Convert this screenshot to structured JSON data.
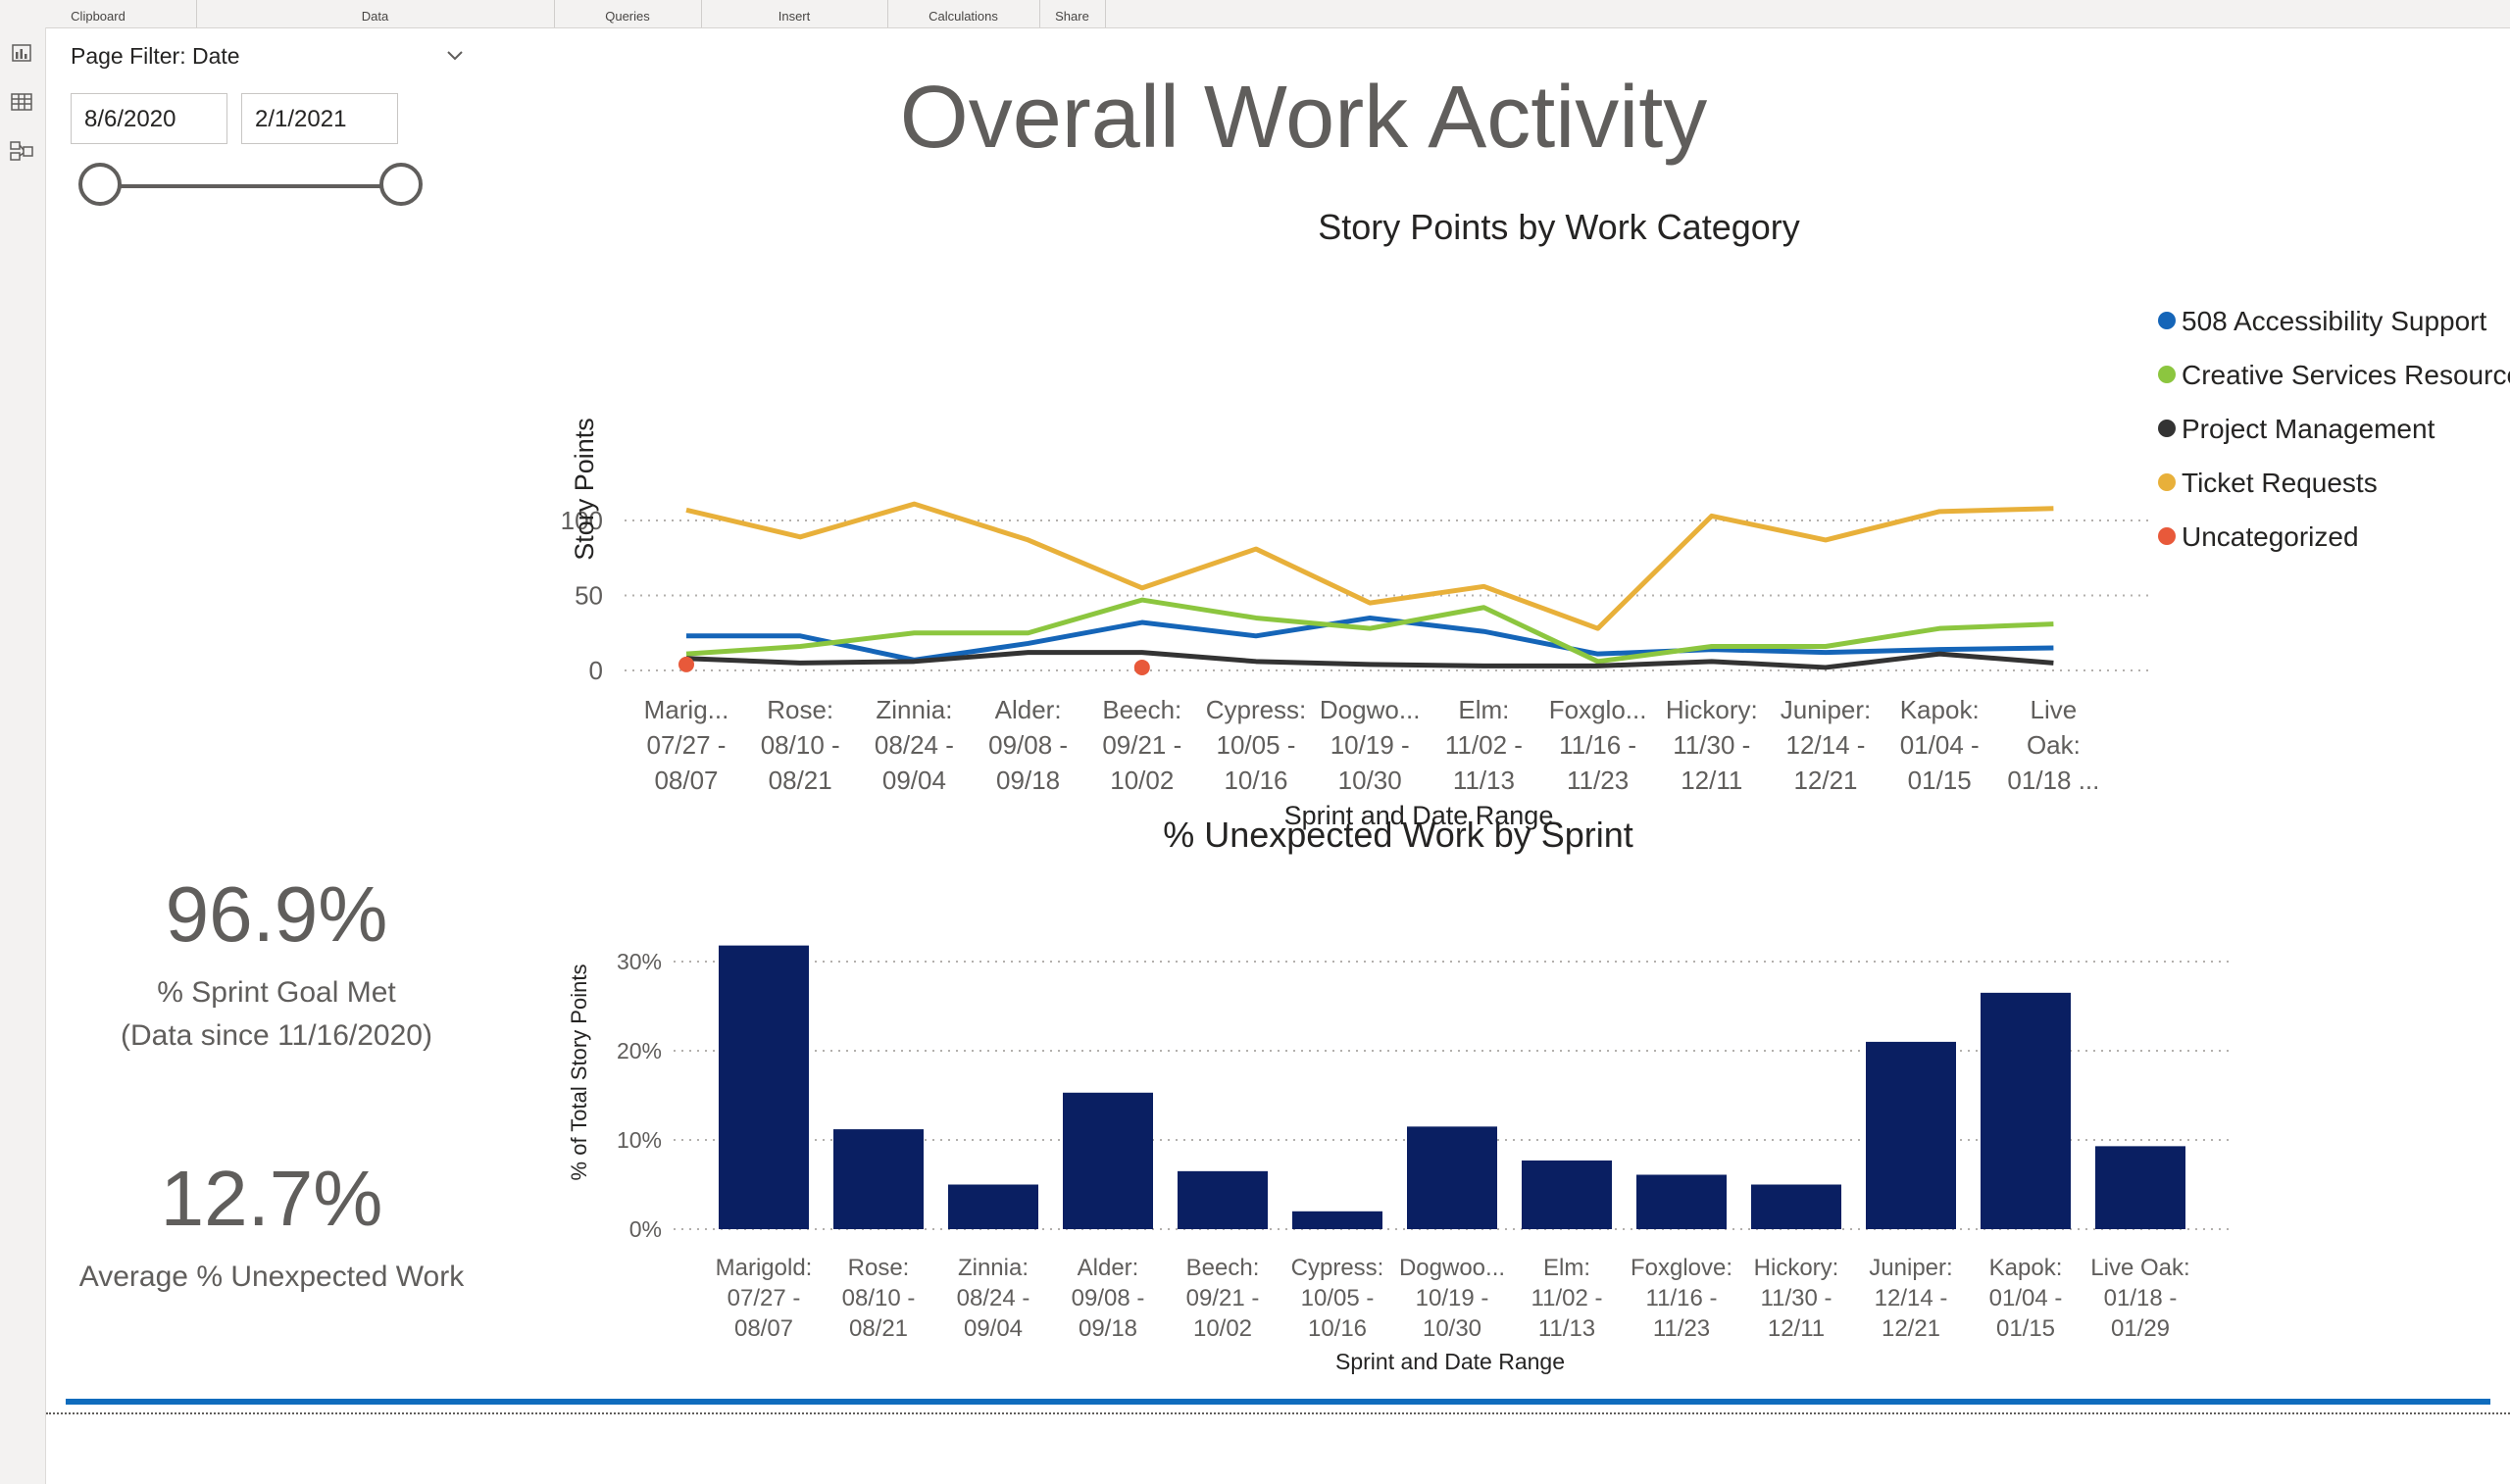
{
  "ribbon": {
    "groups": [
      "Clipboard",
      "Data",
      "Queries",
      "Insert",
      "Calculations",
      "Share"
    ]
  },
  "rail": {
    "icons": [
      "report-view-icon",
      "table-view-icon",
      "model-view-icon"
    ]
  },
  "page": {
    "title": "Overall Work Activity"
  },
  "slicer": {
    "header": "Page Filter: Date",
    "start_date": "8/6/2020",
    "end_date": "2/1/2021"
  },
  "kpi": {
    "sprint_goal_value": "96.9%",
    "sprint_goal_label": "% Sprint Goal Met",
    "sprint_goal_note": "(Data since 11/16/2020)",
    "unexpected_value": "12.7%",
    "unexpected_label": "Average % Unexpected Work"
  },
  "colors": {
    "accessibility": "#1565b8",
    "creative": "#8cc63f",
    "project": "#333333",
    "tickets": "#e8b03a",
    "uncategorized": "#e8593a",
    "bar": "#0a1f62",
    "accent_line": "#0f6cbd"
  },
  "chart_data": [
    {
      "type": "line",
      "title": "Story Points by Work Category",
      "xlabel": "Sprint and Date Range",
      "ylabel": "Story Points",
      "ylim": [
        0,
        120
      ],
      "yticks": [
        "0",
        "50",
        "100"
      ],
      "grid": true,
      "legend_position": "right",
      "categories": [
        [
          "Marig...",
          "07/27 -",
          "08/07"
        ],
        [
          "Rose:",
          "08/10 -",
          "08/21"
        ],
        [
          "Zinnia:",
          "08/24 -",
          "09/04"
        ],
        [
          "Alder:",
          "09/08 -",
          "09/18"
        ],
        [
          "Beech:",
          "09/21 -",
          "10/02"
        ],
        [
          "Cypress:",
          "10/05 -",
          "10/16"
        ],
        [
          "Dogwo...",
          "10/19 -",
          "10/30"
        ],
        [
          "Elm:",
          "11/02 -",
          "11/13"
        ],
        [
          "Foxglo...",
          "11/16 -",
          "11/23"
        ],
        [
          "Hickory:",
          "11/30 -",
          "12/11"
        ],
        [
          "Juniper:",
          "12/14 -",
          "12/21"
        ],
        [
          "Kapok:",
          "01/04 -",
          "01/15"
        ],
        [
          "Live",
          "Oak:",
          "01/18 ..."
        ]
      ],
      "series": [
        {
          "name": "508 Accessibility Support",
          "color": "#1565b8",
          "values": [
            23,
            23,
            7,
            18,
            32,
            23,
            35,
            26,
            11,
            14,
            12,
            14,
            15
          ]
        },
        {
          "name": "Creative Services Resources",
          "color": "#8cc63f",
          "values": [
            11,
            16,
            25,
            25,
            47,
            35,
            28,
            42,
            6,
            16,
            16,
            28,
            31
          ]
        },
        {
          "name": "Project Management",
          "color": "#333333",
          "values": [
            8,
            5,
            6,
            12,
            12,
            6,
            4,
            3,
            3,
            6,
            2,
            11,
            5
          ]
        },
        {
          "name": "Ticket Requests",
          "color": "#e8b03a",
          "values": [
            107,
            89,
            111,
            87,
            55,
            81,
            45,
            56,
            28,
            103,
            87,
            106,
            108
          ]
        },
        {
          "name": "Uncategorized",
          "color": "#e8593a",
          "points": [
            [
              0,
              4
            ],
            [
              4,
              2
            ]
          ]
        }
      ]
    },
    {
      "type": "bar",
      "title": "% Unexpected Work by Sprint",
      "xlabel": "Sprint and Date Range",
      "ylabel": "% of Total Story Points",
      "ylim": [
        0,
        33
      ],
      "yticks": [
        "0%",
        "10%",
        "20%",
        "30%"
      ],
      "grid": true,
      "color": "#0a1f62",
      "categories": [
        [
          "Marigold:",
          "07/27 -",
          "08/07"
        ],
        [
          "Rose:",
          "08/10 -",
          "08/21"
        ],
        [
          "Zinnia:",
          "08/24 -",
          "09/04"
        ],
        [
          "Alder:",
          "09/08 -",
          "09/18"
        ],
        [
          "Beech:",
          "09/21 -",
          "10/02"
        ],
        [
          "Cypress:",
          "10/05 -",
          "10/16"
        ],
        [
          "Dogwoo...",
          "10/19 -",
          "10/30"
        ],
        [
          "Elm:",
          "11/02 -",
          "11/13"
        ],
        [
          "Foxglove:",
          "11/16 -",
          "11/23"
        ],
        [
          "Hickory:",
          "11/30 -",
          "12/11"
        ],
        [
          "Juniper:",
          "12/14 -",
          "12/21"
        ],
        [
          "Kapok:",
          "01/04 -",
          "01/15"
        ],
        [
          "Live Oak:",
          "01/18 -",
          "01/29"
        ]
      ],
      "values": [
        31.8,
        11.2,
        5.0,
        15.3,
        6.5,
        2.0,
        11.5,
        7.7,
        6.1,
        5.0,
        21.0,
        26.5,
        9.3
      ]
    }
  ]
}
